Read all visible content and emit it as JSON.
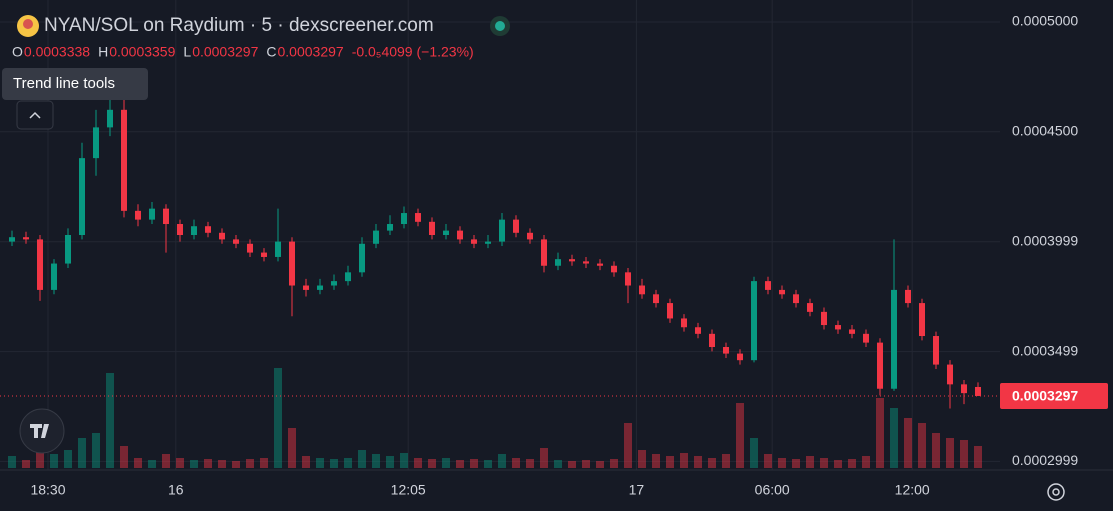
{
  "header": {
    "title": "NYAN/SOL on Raydium · 5 · dexscreener.com",
    "ohlc_labels": [
      "O",
      "H",
      "L",
      "C"
    ],
    "change": "-0.0₅4099 (−1.23%)"
  },
  "tooltip": "Trend line tools",
  "chart_data": {
    "type": "candlestick",
    "open": [
      0.0004,
      0.000402,
      0.000401,
      0.000378,
      0.00039,
      0.000403,
      0.000438,
      0.000452,
      0.00046,
      0.000414,
      0.00041,
      0.000415,
      0.000408,
      0.000403,
      0.000407,
      0.000404,
      0.000401,
      0.000399,
      0.000395,
      0.000393,
      0.0004,
      0.00038,
      0.000378,
      0.00038,
      0.000382,
      0.000386,
      0.000399,
      0.000405,
      0.000408,
      0.000413,
      0.000409,
      0.000403,
      0.000405,
      0.000401,
      0.000399,
      0.0004,
      0.00041,
      0.000404,
      0.000401,
      0.000389,
      0.000392,
      0.000391,
      0.00039,
      0.000389,
      0.000386,
      0.00038,
      0.000376,
      0.000372,
      0.000365,
      0.000361,
      0.000358,
      0.000352,
      0.000349,
      0.000346,
      0.000382,
      0.000378,
      0.000376,
      0.000372,
      0.000368,
      0.000362,
      0.00036,
      0.000358,
      0.000354,
      0.000333,
      0.000378,
      0.000372,
      0.000357,
      0.000344,
      0.000335,
      0.0003338
    ],
    "high": [
      0.000405,
      0.0004045,
      0.000403,
      0.000392,
      0.000406,
      0.000445,
      0.00046,
      0.000474,
      0.000465,
      0.000417,
      0.000418,
      0.000417,
      0.00041,
      0.00041,
      0.000409,
      0.000406,
      0.000403,
      0.000401,
      0.000397,
      0.000415,
      0.000402,
      0.000383,
      0.000383,
      0.000385,
      0.000389,
      0.000402,
      0.000408,
      0.000412,
      0.000416,
      0.000415,
      0.000411,
      0.000408,
      0.000407,
      0.000403,
      0.000403,
      0.000413,
      0.000412,
      0.000406,
      0.000403,
      0.000395,
      0.000394,
      0.000393,
      0.000392,
      0.000391,
      0.000388,
      0.000383,
      0.000378,
      0.000374,
      0.000367,
      0.000363,
      0.00036,
      0.000354,
      0.000351,
      0.000384,
      0.000384,
      0.00038,
      0.000378,
      0.000374,
      0.00037,
      0.000364,
      0.000362,
      0.00036,
      0.000356,
      0.000401,
      0.00038,
      0.000374,
      0.000359,
      0.000346,
      0.000337,
      0.0003359
    ],
    "low": [
      0.000398,
      0.000399,
      0.000373,
      0.000376,
      0.000388,
      0.000401,
      0.00043,
      0.000448,
      0.000411,
      0.000407,
      0.000408,
      0.000395,
      0.0004,
      0.000401,
      0.000402,
      0.000399,
      0.000397,
      0.000393,
      0.000391,
      0.000391,
      0.000366,
      0.000375,
      0.000376,
      0.000378,
      0.00038,
      0.000384,
      0.000397,
      0.000403,
      0.000406,
      0.000407,
      0.000401,
      0.000401,
      0.000399,
      0.000397,
      0.000397,
      0.000398,
      0.000402,
      0.000399,
      0.000386,
      0.000387,
      0.000389,
      0.000388,
      0.000387,
      0.000384,
      0.000372,
      0.000374,
      0.00037,
      0.000363,
      0.000359,
      0.000356,
      0.00035,
      0.000347,
      0.000344,
      0.000345,
      0.000376,
      0.000374,
      0.00037,
      0.000366,
      0.00036,
      0.000358,
      0.000356,
      0.000352,
      0.00033,
      0.000332,
      0.00037,
      0.000355,
      0.000342,
      0.000324,
      0.000326,
      0.0003297
    ],
    "close": [
      0.000402,
      0.000401,
      0.000378,
      0.00039,
      0.000403,
      0.000438,
      0.000452,
      0.00046,
      0.000414,
      0.00041,
      0.000415,
      0.000408,
      0.000403,
      0.000407,
      0.000404,
      0.000401,
      0.000399,
      0.000395,
      0.000393,
      0.0004,
      0.00038,
      0.000378,
      0.00038,
      0.000382,
      0.000386,
      0.000399,
      0.000405,
      0.000408,
      0.000413,
      0.000409,
      0.000403,
      0.000405,
      0.000401,
      0.000399,
      0.0004,
      0.00041,
      0.000404,
      0.000401,
      0.000389,
      0.000392,
      0.000391,
      0.00039,
      0.000389,
      0.000386,
      0.00038,
      0.000376,
      0.000372,
      0.000365,
      0.000361,
      0.000358,
      0.000352,
      0.000349,
      0.000346,
      0.000382,
      0.000378,
      0.000376,
      0.000372,
      0.000368,
      0.000362,
      0.00036,
      0.000358,
      0.000354,
      0.000333,
      0.000378,
      0.000372,
      0.000357,
      0.000344,
      0.000335,
      0.000331,
      0.0003297
    ],
    "volume": [
      12,
      8,
      25,
      14,
      18,
      30,
      35,
      95,
      22,
      10,
      8,
      14,
      10,
      8,
      9,
      8,
      7,
      9,
      10,
      100,
      40,
      12,
      10,
      9,
      10,
      18,
      14,
      12,
      15,
      10,
      9,
      10,
      8,
      9,
      8,
      14,
      10,
      9,
      20,
      8,
      7,
      8,
      7,
      9,
      45,
      18,
      14,
      12,
      15,
      12,
      10,
      14,
      65,
      30,
      14,
      10,
      9,
      12,
      10,
      8,
      9,
      12,
      70,
      60,
      50,
      45,
      35,
      30,
      28,
      22
    ],
    "up_color": "#089981",
    "down_color": "#f23645",
    "ylim": [
      0.000296,
      0.00051
    ],
    "yticks": [
      {
        "value": 0.0005,
        "label": "0.0005000"
      },
      {
        "value": 0.00045,
        "label": "0.0004500"
      },
      0.0003999,
      0.0003499,
      0.0002999
    ],
    "xlim": [
      0,
      70
    ],
    "xticks": [
      {
        "value": 3.07,
        "label": "18:30"
      },
      {
        "value": 12.2,
        "label": "16"
      },
      {
        "value": 28.8,
        "label": "12:05"
      },
      {
        "value": 45.1,
        "label": "17"
      },
      {
        "value": 54.8,
        "label": "06:00"
      },
      {
        "value": 64.8,
        "label": "12:00"
      }
    ],
    "grid": true
  }
}
